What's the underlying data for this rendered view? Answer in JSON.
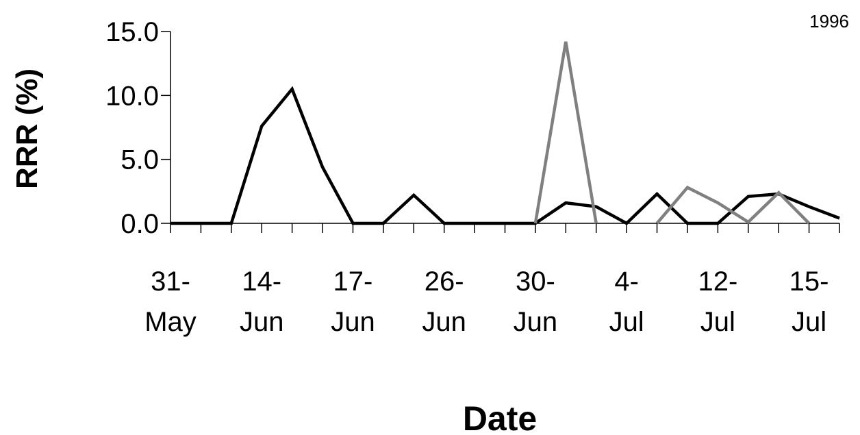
{
  "chart_data": {
    "type": "line",
    "title": "1996",
    "xlabel": "Date",
    "ylabel": "RRR (%)",
    "ylim": [
      0,
      15
    ],
    "yticks": [
      "0.0",
      "5.0",
      "10.0",
      "15.0"
    ],
    "ytick_values": [
      0,
      5,
      10,
      15
    ],
    "xtick_labels": [
      [
        "31-",
        "May"
      ],
      [
        "14-",
        "Jun"
      ],
      [
        "17-",
        "Jun"
      ],
      [
        "26-",
        "Jun"
      ],
      [
        "30-",
        "Jun"
      ],
      [
        "4-",
        "Jul"
      ],
      [
        "12-",
        "Jul"
      ],
      [
        "15-",
        "Jul"
      ]
    ],
    "grid": false,
    "series": [
      {
        "color": "#000000",
        "values": [
          0,
          0,
          0,
          7.6,
          10.5,
          4.4,
          0,
          0,
          2.2,
          0,
          0,
          0,
          0,
          1.6,
          1.3,
          0,
          2.3,
          0,
          0,
          2.1,
          2.3,
          1.3,
          0.4
        ]
      },
      {
        "color": "#808080",
        "values": [
          null,
          null,
          null,
          null,
          null,
          null,
          null,
          null,
          null,
          null,
          null,
          null,
          0,
          14.2,
          0,
          null,
          0,
          2.8,
          1.6,
          0.1,
          2.4,
          0,
          null
        ]
      }
    ]
  }
}
